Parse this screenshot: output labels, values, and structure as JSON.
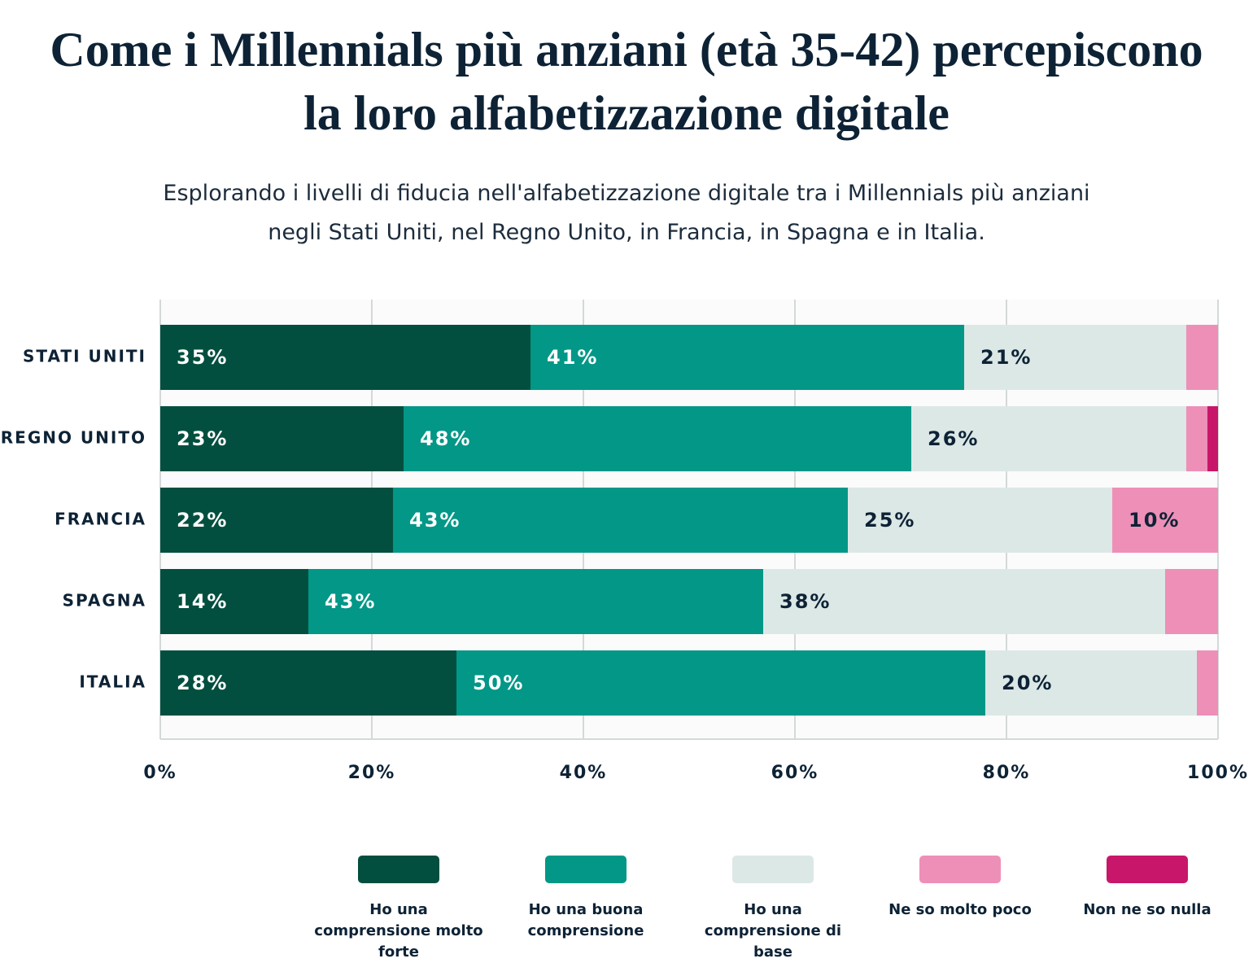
{
  "chart_data": {
    "type": "stacked-bar-horizontal",
    "title": "Come i Millennials più anziani (età 35-42) percepiscono la loro alfabetizzazione digitale",
    "subtitle": "Esplorando i livelli di fiducia nell'alfabetizzazione digitale tra i Millennials più anziani negli Stati Uniti, nel Regno Unito, in Francia, in Spagna e in Italia.",
    "categories": [
      "STATI UNITI",
      "REGNO UNITO",
      "FRANCIA",
      "SPAGNA",
      "ITALIA"
    ],
    "series": [
      {
        "name": "Ho una comprensione molto forte",
        "color": "#034f3f",
        "values": [
          35,
          23,
          22,
          14,
          28
        ],
        "value_labels": [
          "35%",
          "23%",
          "22%",
          "14%",
          "28%"
        ]
      },
      {
        "name": "Ho una buona comprensione",
        "color": "#029787",
        "values": [
          41,
          48,
          43,
          43,
          50
        ],
        "value_labels": [
          "41%",
          "48%",
          "43%",
          "43%",
          "50%"
        ]
      },
      {
        "name": "Ho una comprensione di base",
        "color": "#dce8e6",
        "values": [
          21,
          26,
          25,
          38,
          20
        ],
        "value_labels": [
          "21%",
          "26%",
          "25%",
          "38%",
          "20%"
        ]
      },
      {
        "name": "Ne so molto poco",
        "color": "#ee8fb8",
        "values": [
          3,
          2,
          10,
          5,
          2
        ],
        "value_labels": [
          null,
          null,
          "10%",
          null,
          null
        ]
      },
      {
        "name": "Non ne so nulla",
        "color": "#c8176b",
        "values": [
          0,
          1,
          0,
          0,
          0
        ],
        "value_labels": [
          null,
          null,
          null,
          null,
          null
        ]
      }
    ],
    "xlim": [
      0,
      100
    ],
    "xticks": [
      {
        "value": 0,
        "label": "0%"
      },
      {
        "value": 20,
        "label": "20%"
      },
      {
        "value": 40,
        "label": "40%"
      },
      {
        "value": 60,
        "label": "60%"
      },
      {
        "value": 80,
        "label": "80%"
      },
      {
        "value": 100,
        "label": "100%"
      }
    ],
    "grid": true
  }
}
